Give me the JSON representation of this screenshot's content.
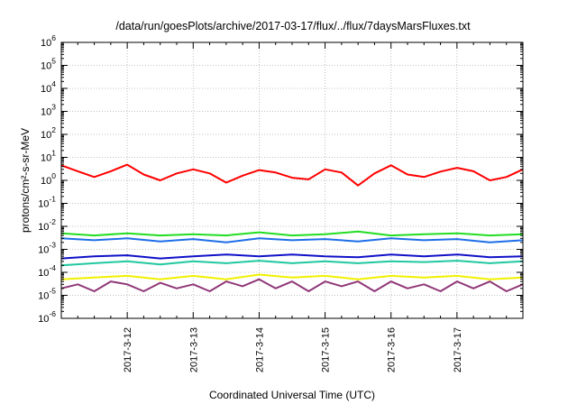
{
  "chart_data": {
    "type": "line",
    "title": "/data/run/goesPlots/archive/2017-03-17/flux/../flux/7daysMarsFluxes.txt",
    "xlabel": "Coordinated Universal Time (UTC)",
    "ylabel": "protons/cm²-s-sr-MeV",
    "y_scale": "log",
    "ylim": [
      1e-06,
      1000000.0
    ],
    "y_tick_exponents": [
      -6,
      -5,
      -4,
      -3,
      -2,
      -1,
      0,
      1,
      2,
      3,
      4,
      5,
      6
    ],
    "xlim": [
      "2017-03-11 00:00",
      "2017-03-18 00:00"
    ],
    "x_tick_labels": [
      "2017-3-12",
      "2017-3-13",
      "2017-3-14",
      "2017-3-15",
      "2017-3-16",
      "2017-3-17"
    ],
    "x_tick_values": [
      "2017-03-12",
      "2017-03-13",
      "2017-03-14",
      "2017-03-15",
      "2017-03-16",
      "2017-03-17"
    ],
    "grid": true,
    "legend": "none",
    "series": [
      {
        "color": "#ff0000",
        "x": [
          "2017-03-11 00:00",
          "2017-03-11 06:00",
          "2017-03-11 12:00",
          "2017-03-11 18:00",
          "2017-03-12 00:00",
          "2017-03-12 06:00",
          "2017-03-12 12:00",
          "2017-03-12 18:00",
          "2017-03-13 00:00",
          "2017-03-13 06:00",
          "2017-03-13 12:00",
          "2017-03-13 18:00",
          "2017-03-14 00:00",
          "2017-03-14 06:00",
          "2017-03-14 12:00",
          "2017-03-14 18:00",
          "2017-03-15 00:00",
          "2017-03-15 06:00",
          "2017-03-15 12:00",
          "2017-03-15 18:00",
          "2017-03-16 00:00",
          "2017-03-16 06:00",
          "2017-03-16 12:00",
          "2017-03-16 18:00",
          "2017-03-17 00:00",
          "2017-03-17 06:00",
          "2017-03-17 12:00",
          "2017-03-17 18:00",
          "2017-03-18 00:00"
        ],
        "y": [
          4.5,
          2.5,
          1.4,
          2.5,
          4.8,
          1.8,
          1.0,
          2.0,
          3.0,
          2.0,
          0.8,
          1.6,
          2.8,
          2.2,
          1.3,
          1.1,
          3.0,
          2.2,
          0.6,
          2.0,
          4.5,
          1.8,
          1.4,
          2.4,
          3.5,
          2.5,
          1.0,
          1.4,
          3.0
        ]
      },
      {
        "color": "#22dd22",
        "x": [
          "2017-03-11 00:00",
          "2017-03-11 12:00",
          "2017-03-12 00:00",
          "2017-03-12 12:00",
          "2017-03-13 00:00",
          "2017-03-13 12:00",
          "2017-03-14 00:00",
          "2017-03-14 12:00",
          "2017-03-15 00:00",
          "2017-03-15 12:00",
          "2017-03-16 00:00",
          "2017-03-16 12:00",
          "2017-03-17 00:00",
          "2017-03-17 12:00",
          "2017-03-18 00:00"
        ],
        "y": [
          0.005,
          0.004,
          0.005,
          0.004,
          0.0045,
          0.004,
          0.0055,
          0.004,
          0.0045,
          0.006,
          0.004,
          0.0045,
          0.005,
          0.004,
          0.0045
        ]
      },
      {
        "color": "#1e6ee8",
        "x": [
          "2017-03-11 00:00",
          "2017-03-11 12:00",
          "2017-03-12 00:00",
          "2017-03-12 12:00",
          "2017-03-13 00:00",
          "2017-03-13 12:00",
          "2017-03-14 00:00",
          "2017-03-14 12:00",
          "2017-03-15 00:00",
          "2017-03-15 12:00",
          "2017-03-16 00:00",
          "2017-03-16 12:00",
          "2017-03-17 00:00",
          "2017-03-17 12:00",
          "2017-03-18 00:00"
        ],
        "y": [
          0.003,
          0.0025,
          0.003,
          0.0022,
          0.0028,
          0.002,
          0.003,
          0.0025,
          0.0028,
          0.0022,
          0.003,
          0.0025,
          0.0028,
          0.002,
          0.0025
        ]
      },
      {
        "color": "#1010c8",
        "x": [
          "2017-03-11 00:00",
          "2017-03-11 12:00",
          "2017-03-12 00:00",
          "2017-03-12 12:00",
          "2017-03-13 00:00",
          "2017-03-13 12:00",
          "2017-03-14 00:00",
          "2017-03-14 12:00",
          "2017-03-15 00:00",
          "2017-03-15 12:00",
          "2017-03-16 00:00",
          "2017-03-16 12:00",
          "2017-03-17 00:00",
          "2017-03-17 12:00",
          "2017-03-18 00:00"
        ],
        "y": [
          0.0004,
          0.0005,
          0.00055,
          0.0004,
          0.0005,
          0.0006,
          0.0005,
          0.0006,
          0.0005,
          0.00045,
          0.0006,
          0.0005,
          0.0006,
          0.00045,
          0.0005
        ]
      },
      {
        "color": "#20c8a0",
        "x": [
          "2017-03-11 00:00",
          "2017-03-11 12:00",
          "2017-03-12 00:00",
          "2017-03-12 12:00",
          "2017-03-13 00:00",
          "2017-03-13 12:00",
          "2017-03-14 00:00",
          "2017-03-14 12:00",
          "2017-03-15 00:00",
          "2017-03-15 12:00",
          "2017-03-16 00:00",
          "2017-03-16 12:00",
          "2017-03-17 00:00",
          "2017-03-17 12:00",
          "2017-03-18 00:00"
        ],
        "y": [
          0.0002,
          0.00025,
          0.0003,
          0.00022,
          0.0003,
          0.00025,
          0.00032,
          0.00025,
          0.0003,
          0.00025,
          0.0003,
          0.00028,
          0.00032,
          0.00025,
          0.0003
        ]
      },
      {
        "color": "#f0f000",
        "x": [
          "2017-03-11 00:00",
          "2017-03-11 12:00",
          "2017-03-12 00:00",
          "2017-03-12 12:00",
          "2017-03-13 00:00",
          "2017-03-13 12:00",
          "2017-03-14 00:00",
          "2017-03-14 12:00",
          "2017-03-15 00:00",
          "2017-03-15 12:00",
          "2017-03-16 00:00",
          "2017-03-16 12:00",
          "2017-03-17 00:00",
          "2017-03-17 12:00",
          "2017-03-18 00:00"
        ],
        "y": [
          5e-05,
          6e-05,
          7e-05,
          5e-05,
          7e-05,
          5e-05,
          8e-05,
          6e-05,
          7e-05,
          5e-05,
          7e-05,
          6e-05,
          7e-05,
          5e-05,
          6e-05
        ]
      },
      {
        "color": "#903878",
        "x": [
          "2017-03-11 00:00",
          "2017-03-11 06:00",
          "2017-03-11 12:00",
          "2017-03-11 18:00",
          "2017-03-12 00:00",
          "2017-03-12 06:00",
          "2017-03-12 12:00",
          "2017-03-12 18:00",
          "2017-03-13 00:00",
          "2017-03-13 06:00",
          "2017-03-13 12:00",
          "2017-03-13 18:00",
          "2017-03-14 00:00",
          "2017-03-14 06:00",
          "2017-03-14 12:00",
          "2017-03-14 18:00",
          "2017-03-15 00:00",
          "2017-03-15 06:00",
          "2017-03-15 12:00",
          "2017-03-15 18:00",
          "2017-03-16 00:00",
          "2017-03-16 06:00",
          "2017-03-16 12:00",
          "2017-03-16 18:00",
          "2017-03-17 00:00",
          "2017-03-17 06:00",
          "2017-03-17 12:00",
          "2017-03-17 18:00",
          "2017-03-18 00:00"
        ],
        "y": [
          2e-05,
          3e-05,
          1.5e-05,
          4e-05,
          3e-05,
          1.5e-05,
          3.5e-05,
          2e-05,
          3e-05,
          1.5e-05,
          4e-05,
          2.5e-05,
          5e-05,
          2e-05,
          4e-05,
          1.5e-05,
          4e-05,
          2.5e-05,
          4e-05,
          1.5e-05,
          4e-05,
          2e-05,
          3e-05,
          1.5e-05,
          4e-05,
          2e-05,
          4e-05,
          1.5e-05,
          3e-05
        ]
      }
    ]
  }
}
